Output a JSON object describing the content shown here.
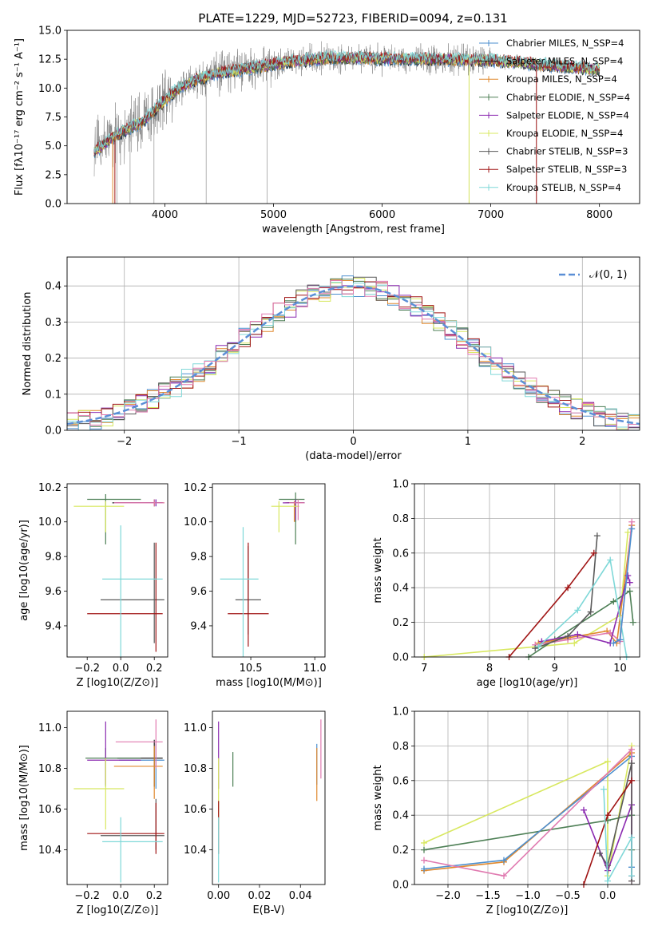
{
  "title": "PLATE=1229, MJD=52723, FIBERID=0094, z=0.131",
  "colors": {
    "chabrier_miles": "#4c8fcf",
    "salpeter_miles": "#1f1f1f",
    "kroupa_miles": "#e0892e",
    "chabrier_elodie": "#4d7f55",
    "salpeter_elodie": "#8b2ab0",
    "kroupa_elodie": "#d8e860",
    "chabrier_stelib": "#5a5a5a",
    "salpeter_stelib": "#a01414",
    "kroupa_stelib": "#7fd8d8",
    "pink": "#e07ab0",
    "gaussian": "#5b8fd6",
    "data": "#808080",
    "grid": "#b0b0b0"
  },
  "chart_data": [
    {
      "id": "spectrum",
      "type": "line",
      "title": "PLATE=1229, MJD=52723, FIBERID=0094, z=0.131",
      "xlabel": "wavelength [Angstrom, rest frame]",
      "ylabel": "Flux [fλ10⁻¹⁷ erg cm⁻² s⁻¹ A⁻¹]",
      "xlim": [
        3100,
        8370
      ],
      "ylim": [
        0,
        15
      ],
      "xticks": [
        "4000",
        "5000",
        "6000",
        "7000",
        "8000"
      ],
      "yticks": [
        "0.0",
        "2.5",
        "5.0",
        "7.5",
        "10.0",
        "12.5",
        "15.0"
      ],
      "grid": false,
      "legend_position": "top-right",
      "legend": [
        "Chabrier MILES, N_SSP=4",
        "Salpeter MILES, N_SSP=4",
        "Kroupa MILES, N_SSP=4",
        "Chabrier ELODIE, N_SSP=4",
        "Salpeter ELODIE, N_SSP=4",
        "Kroupa ELODIE, N_SSP=4",
        "Chabrier STELIB, N_SSP=3",
        "Salpeter STELIB, N_SSP=3",
        "Kroupa STELIB, N_SSP=4"
      ],
      "model_continuum": {
        "x": [
          3350,
          3500,
          3650,
          3800,
          3950,
          4100,
          4300,
          4500,
          4700,
          4900,
          5100,
          5300,
          5500,
          5800,
          6100,
          6500,
          7000,
          7500,
          8000
        ],
        "y": [
          4.5,
          5.6,
          6.4,
          7.1,
          8.5,
          9.8,
          10.8,
          11.3,
          11.6,
          11.9,
          12.2,
          12.4,
          12.6,
          12.6,
          12.5,
          12.5,
          12.4,
          12.0,
          11.6
        ]
      }
    },
    {
      "id": "residuals",
      "type": "histogram",
      "xlabel": "(data-model)/error",
      "ylabel": "Normed distribution",
      "xlim": [
        -2.5,
        2.5
      ],
      "ylim": [
        0,
        0.48
      ],
      "xticks": [
        "−2",
        "−1",
        "0",
        "1",
        "2"
      ],
      "yticks": [
        "0.0",
        "0.1",
        "0.2",
        "0.3",
        "0.4"
      ],
      "grid": true,
      "legend_position": "top-right",
      "legend": [
        "𝒩(0, 1)"
      ],
      "bin_width": 0.1
    },
    {
      "id": "age_vs_Z",
      "type": "scatter",
      "xlabel": "Z [log10(Z/Z⊙)]",
      "ylabel": "age [log10(age/yr)]",
      "xlim": [
        -0.32,
        0.28
      ],
      "ylim": [
        9.22,
        10.22
      ],
      "xticks": [
        "−0.2",
        "0.0",
        "0.2"
      ],
      "yticks": [
        "9.4",
        "9.6",
        "9.8",
        "10.0",
        "10.2"
      ],
      "points": [
        {
          "c": "chabrier_miles",
          "x": 0.21,
          "y": 10.11,
          "xe": [
            0.15,
            0.25
          ],
          "ye": [
            10.09,
            10.13
          ]
        },
        {
          "c": "salpeter_miles",
          "x": 0.2,
          "y": 10.11,
          "xe": [
            -0.05,
            0.25
          ],
          "ye": [
            10.09,
            10.13
          ]
        },
        {
          "c": "kroupa_miles",
          "x": 0.2,
          "y": 10.11,
          "xe": [
            -0.02,
            0.26
          ],
          "ye": [
            10.09,
            10.12
          ]
        },
        {
          "c": "chabrier_elodie",
          "x": -0.09,
          "y": 10.13,
          "xe": [
            -0.2,
            0.12
          ],
          "ye": [
            9.87,
            10.16
          ]
        },
        {
          "c": "salpeter_elodie",
          "x": 0.21,
          "y": 10.11,
          "xe": [
            -0.03,
            0.25
          ],
          "ye": [
            10.09,
            10.13
          ]
        },
        {
          "c": "kroupa_elodie",
          "x": -0.09,
          "y": 10.09,
          "xe": [
            -0.28,
            0.02
          ],
          "ye": [
            9.94,
            10.12
          ]
        },
        {
          "c": "chabrier_stelib",
          "x": 0.2,
          "y": 9.55,
          "xe": [
            -0.12,
            0.26
          ],
          "ye": [
            9.3,
            9.88
          ]
        },
        {
          "c": "salpeter_stelib",
          "x": 0.21,
          "y": 9.47,
          "xe": [
            -0.2,
            0.25
          ],
          "ye": [
            9.25,
            9.88
          ]
        },
        {
          "c": "kroupa_stelib",
          "x": 0.0,
          "y": 9.67,
          "xe": [
            -0.11,
            0.25
          ],
          "ye": [
            9.22,
            9.98
          ]
        },
        {
          "c": "pink",
          "x": 0.2,
          "y": 10.11,
          "xe": [
            -0.04,
            0.26
          ],
          "ye": [
            10.09,
            10.13
          ]
        }
      ]
    },
    {
      "id": "age_vs_mass",
      "type": "scatter",
      "xlabel": "mass [log10(M/M⊙)]",
      "ylabel": "",
      "xlim": [
        10.2,
        11.08
      ],
      "ylim": [
        9.22,
        10.22
      ],
      "xticks": [
        "10.5",
        "11.0"
      ],
      "yticks": [
        "9.4",
        "9.6",
        "9.8",
        "10.0",
        "10.2"
      ],
      "points": [
        {
          "c": "chabrier_miles",
          "x": 10.85,
          "y": 10.11,
          "xe": [
            10.78,
            10.92
          ],
          "ye": [
            10.0,
            10.13
          ]
        },
        {
          "c": "salpeter_miles",
          "x": 10.85,
          "y": 10.11,
          "xe": [
            10.79,
            10.92
          ],
          "ye": [
            10.0,
            10.13
          ]
        },
        {
          "c": "kroupa_miles",
          "x": 10.84,
          "y": 10.11,
          "xe": [
            10.77,
            10.91
          ],
          "ye": [
            10.0,
            10.12
          ]
        },
        {
          "c": "chabrier_elodie",
          "x": 10.85,
          "y": 10.13,
          "xe": [
            10.72,
            10.92
          ],
          "ye": [
            9.87,
            10.17
          ]
        },
        {
          "c": "salpeter_elodie",
          "x": 10.85,
          "y": 10.11,
          "xe": [
            10.75,
            10.92
          ],
          "ye": [
            10.01,
            10.13
          ]
        },
        {
          "c": "kroupa_elodie",
          "x": 10.72,
          "y": 10.09,
          "xe": [
            10.66,
            10.88
          ],
          "ye": [
            9.94,
            10.12
          ]
        },
        {
          "c": "chabrier_stelib",
          "x": 10.48,
          "y": 9.55,
          "xe": [
            10.38,
            10.58
          ],
          "ye": [
            9.35,
            9.86
          ]
        },
        {
          "c": "salpeter_stelib",
          "x": 10.48,
          "y": 9.47,
          "xe": [
            10.32,
            10.64
          ],
          "ye": [
            9.28,
            9.88
          ]
        },
        {
          "c": "kroupa_stelib",
          "x": 10.44,
          "y": 9.67,
          "xe": [
            10.26,
            10.56
          ],
          "ye": [
            9.22,
            9.97
          ]
        },
        {
          "c": "pink",
          "x": 10.87,
          "y": 10.11,
          "xe": [
            10.8,
            10.92
          ],
          "ye": [
            10.01,
            10.13
          ]
        }
      ]
    },
    {
      "id": "mass_weight_vs_age",
      "type": "line",
      "xlabel": "age [log10(age/yr)]",
      "ylabel": "mass weight",
      "xlim": [
        6.85,
        10.3
      ],
      "ylim": [
        0,
        1
      ],
      "xticks": [
        "7",
        "8",
        "9",
        "10"
      ],
      "yticks": [
        "0.0",
        "0.2",
        "0.4",
        "0.6",
        "0.8",
        "1.0"
      ],
      "grid": true,
      "series": [
        {
          "c": "kroupa_elodie",
          "x": [
            7.0,
            9.3,
            10.0,
            10.12
          ],
          "y": [
            0.0,
            0.08,
            0.24,
            0.72
          ]
        },
        {
          "c": "chabrier_elodie",
          "x": [
            8.6,
            9.0,
            9.9,
            10.15,
            10.2
          ],
          "y": [
            0.0,
            0.1,
            0.32,
            0.38,
            0.2
          ]
        },
        {
          "c": "kroupa_miles",
          "x": [
            8.75,
            9.2,
            9.8,
            9.95,
            10.18
          ],
          "y": [
            0.08,
            0.11,
            0.15,
            0.08,
            0.76
          ]
        },
        {
          "c": "pink",
          "x": [
            8.7,
            9.2,
            9.85,
            10.0,
            10.18
          ],
          "y": [
            0.07,
            0.1,
            0.14,
            0.09,
            0.78
          ]
        },
        {
          "c": "salpeter_elodie",
          "x": [
            8.8,
            9.35,
            9.85,
            10.12,
            10.15
          ],
          "y": [
            0.09,
            0.13,
            0.08,
            0.47,
            0.43
          ]
        },
        {
          "c": "chabrier_stelib",
          "x": [
            8.7,
            9.2,
            9.55,
            9.65
          ],
          "y": [
            0.05,
            0.12,
            0.26,
            0.7
          ]
        },
        {
          "c": "salpeter_stelib",
          "x": [
            8.3,
            9.2,
            9.6
          ],
          "y": [
            0.0,
            0.4,
            0.6
          ]
        },
        {
          "c": "kroupa_stelib",
          "x": [
            8.75,
            9.35,
            9.85,
            10.1
          ],
          "y": [
            0.06,
            0.27,
            0.56,
            0.0
          ]
        },
        {
          "c": "chabrier_miles",
          "x": [
            9.9,
            10.0,
            10.18
          ],
          "y": [
            0.08,
            0.1,
            0.74
          ]
        }
      ]
    },
    {
      "id": "mass_vs_Z",
      "type": "scatter",
      "xlabel": "Z [log10(Z/Z⊙)]",
      "ylabel": "mass [log10(M/M⊙)]",
      "xlim": [
        -0.32,
        0.28
      ],
      "ylim": [
        10.23,
        11.08
      ],
      "xticks": [
        "−0.2",
        "0.0",
        "0.2"
      ],
      "yticks": [
        "10.4",
        "10.6",
        "10.8",
        "11.0"
      ],
      "points": [
        {
          "c": "chabrier_miles",
          "x": 0.21,
          "y": 10.84,
          "xe": [
            -0.01,
            0.26
          ],
          "ye": [
            10.7,
            10.92
          ]
        },
        {
          "c": "salpeter_miles",
          "x": 0.2,
          "y": 10.85,
          "xe": [
            -0.02,
            0.25
          ],
          "ye": [
            10.71,
            10.94
          ]
        },
        {
          "c": "kroupa_miles",
          "x": 0.2,
          "y": 10.81,
          "xe": [
            -0.04,
            0.25
          ],
          "ye": [
            10.65,
            10.91
          ]
        },
        {
          "c": "chabrier_elodie",
          "x": -0.09,
          "y": 10.85,
          "xe": [
            -0.21,
            0.12
          ],
          "ye": [
            10.71,
            10.9
          ]
        },
        {
          "c": "salpeter_elodie",
          "x": -0.09,
          "y": 10.84,
          "xe": [
            -0.2,
            0.12
          ],
          "ye": [
            10.72,
            11.03
          ]
        },
        {
          "c": "kroupa_elodie",
          "x": -0.09,
          "y": 10.7,
          "xe": [
            -0.28,
            0.02
          ],
          "ye": [
            10.5,
            10.85
          ]
        },
        {
          "c": "chabrier_stelib",
          "x": 0.21,
          "y": 10.47,
          "xe": [
            -0.12,
            0.26
          ],
          "ye": [
            10.4,
            10.65
          ]
        },
        {
          "c": "salpeter_stelib",
          "x": 0.21,
          "y": 10.48,
          "xe": [
            -0.2,
            0.26
          ],
          "ye": [
            10.38,
            10.63
          ]
        },
        {
          "c": "kroupa_stelib",
          "x": 0.0,
          "y": 10.44,
          "xe": [
            -0.11,
            0.25
          ],
          "ye": [
            10.24,
            10.56
          ]
        },
        {
          "c": "pink",
          "x": 0.21,
          "y": 10.93,
          "xe": [
            -0.03,
            0.25
          ],
          "ye": [
            10.8,
            11.04
          ]
        }
      ]
    },
    {
      "id": "mass_vs_ebv",
      "type": "scatter",
      "xlabel": "E(B-V)",
      "ylabel": "",
      "xlim": [
        -0.003,
        0.052
      ],
      "ylim": [
        10.23,
        11.08
      ],
      "xticks": [
        "0.00",
        "0.02",
        "0.04"
      ],
      "yticks": [
        "10.4",
        "10.6",
        "10.8",
        "11.0"
      ],
      "points": [
        {
          "c": "chabrier_miles",
          "x": 0.048,
          "y": 10.84,
          "ye": [
            10.72,
            10.92
          ]
        },
        {
          "c": "kroupa_miles",
          "x": 0.048,
          "y": 10.81,
          "ye": [
            10.64,
            10.9
          ]
        },
        {
          "c": "chabrier_elodie",
          "x": 0.007,
          "y": 10.8,
          "ye": [
            10.71,
            10.88
          ]
        },
        {
          "c": "salpeter_elodie",
          "x": 0.0,
          "y": 10.84,
          "ye": [
            10.7,
            11.03
          ]
        },
        {
          "c": "kroupa_elodie",
          "x": 0.0,
          "y": 10.7,
          "ye": [
            10.5,
            10.85
          ]
        },
        {
          "c": "salpeter_stelib",
          "x": 0.0,
          "y": 10.55,
          "ye": [
            10.38,
            10.64
          ]
        },
        {
          "c": "kroupa_stelib",
          "x": 0.0,
          "y": 10.4,
          "ye": [
            10.24,
            10.56
          ]
        },
        {
          "c": "pink",
          "x": 0.05,
          "y": 10.93,
          "ye": [
            10.75,
            11.04
          ]
        }
      ]
    },
    {
      "id": "mass_weight_vs_Z",
      "type": "line",
      "xlabel": "Z [log10(Z/Z⊙)]",
      "ylabel": "mass weight",
      "xlim": [
        -2.42,
        0.4
      ],
      "ylim": [
        0,
        1
      ],
      "xticks": [
        "−2.0",
        "−1.5",
        "−1.0",
        "−0.5",
        "0.0"
      ],
      "yticks": [
        "0.0",
        "0.2",
        "0.4",
        "0.6",
        "0.8",
        "1.0"
      ],
      "grid": true,
      "series": [
        {
          "c": "kroupa_elodie",
          "x": [
            -2.3,
            0.0,
            0.0,
            0.3
          ],
          "y": [
            0.24,
            0.71,
            0.05,
            0.8
          ]
        },
        {
          "c": "chabrier_elodie",
          "x": [
            -2.3,
            0.0,
            0.3,
            0.3
          ],
          "y": [
            0.2,
            0.37,
            0.4,
            0.2
          ]
        },
        {
          "c": "kroupa_miles",
          "x": [
            -2.3,
            -1.3,
            0.3,
            0.3
          ],
          "y": [
            0.08,
            0.13,
            0.76,
            0.05
          ]
        },
        {
          "c": "chabrier_miles",
          "x": [
            -2.3,
            -1.3,
            0.3,
            0.3
          ],
          "y": [
            0.09,
            0.14,
            0.74,
            0.1
          ]
        },
        {
          "c": "pink",
          "x": [
            -2.3,
            -1.3,
            0.3,
            0.3
          ],
          "y": [
            0.14,
            0.05,
            0.78,
            0.02
          ]
        },
        {
          "c": "salpeter_elodie",
          "x": [
            -0.3,
            0.0,
            0.3,
            0.3
          ],
          "y": [
            0.43,
            0.08,
            0.46,
            0.05
          ]
        },
        {
          "c": "chabrier_stelib",
          "x": [
            -0.1,
            0.0,
            0.3,
            0.3
          ],
          "y": [
            0.18,
            0.11,
            0.7,
            0.02
          ]
        },
        {
          "c": "salpeter_stelib",
          "x": [
            -0.3,
            0.0,
            0.3
          ],
          "y": [
            0.0,
            0.4,
            0.6
          ]
        },
        {
          "c": "kroupa_stelib",
          "x": [
            -0.05,
            0.0,
            0.3,
            0.3
          ],
          "y": [
            0.55,
            0.02,
            0.27,
            0.05
          ]
        }
      ]
    }
  ]
}
